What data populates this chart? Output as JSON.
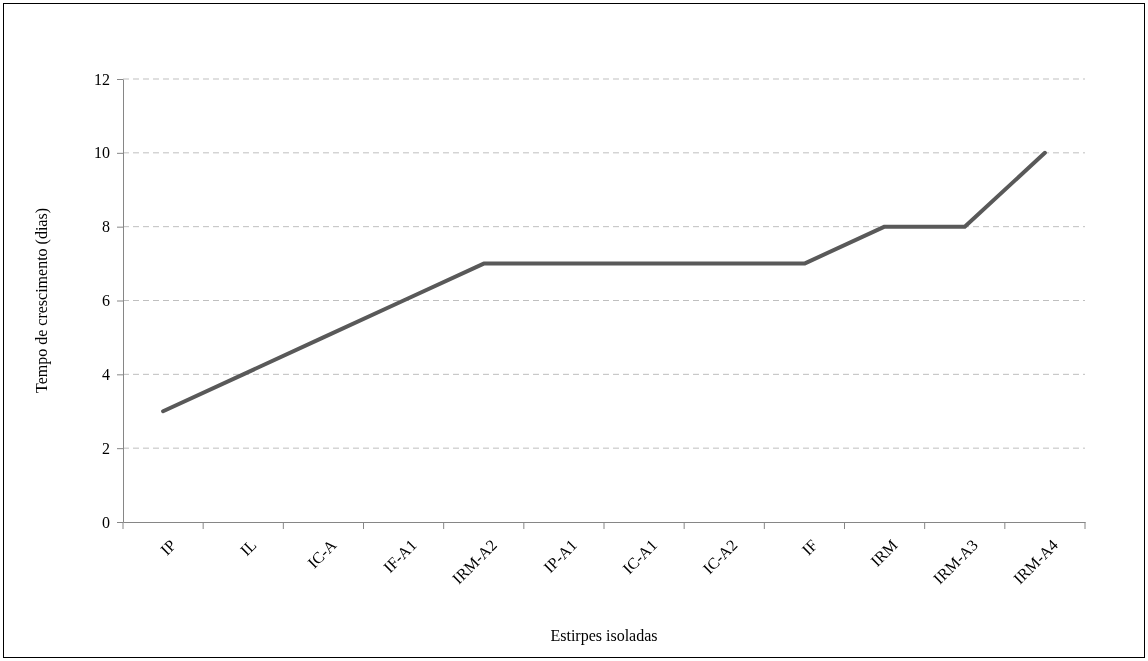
{
  "chart_data": {
    "type": "line",
    "xlabel": "Estirpes isoladas",
    "ylabel": "Tempo de crescimento (dias)",
    "categories": [
      "IP",
      "IL",
      "IC-A",
      "IF-A1",
      "IRM-A2",
      "IP-A1",
      "IC-A1",
      "IC-A2",
      "IF",
      "IRM",
      "IRM-A3",
      "IRM-A4"
    ],
    "series": [
      {
        "color": "#595959",
        "values": [
          3,
          4,
          5,
          6,
          7,
          7,
          7,
          7,
          7,
          8,
          8,
          10
        ]
      }
    ],
    "ylim": [
      0,
      12
    ],
    "yticks": [
      0,
      2,
      4,
      6,
      8,
      10,
      12
    ],
    "grid": "y"
  }
}
